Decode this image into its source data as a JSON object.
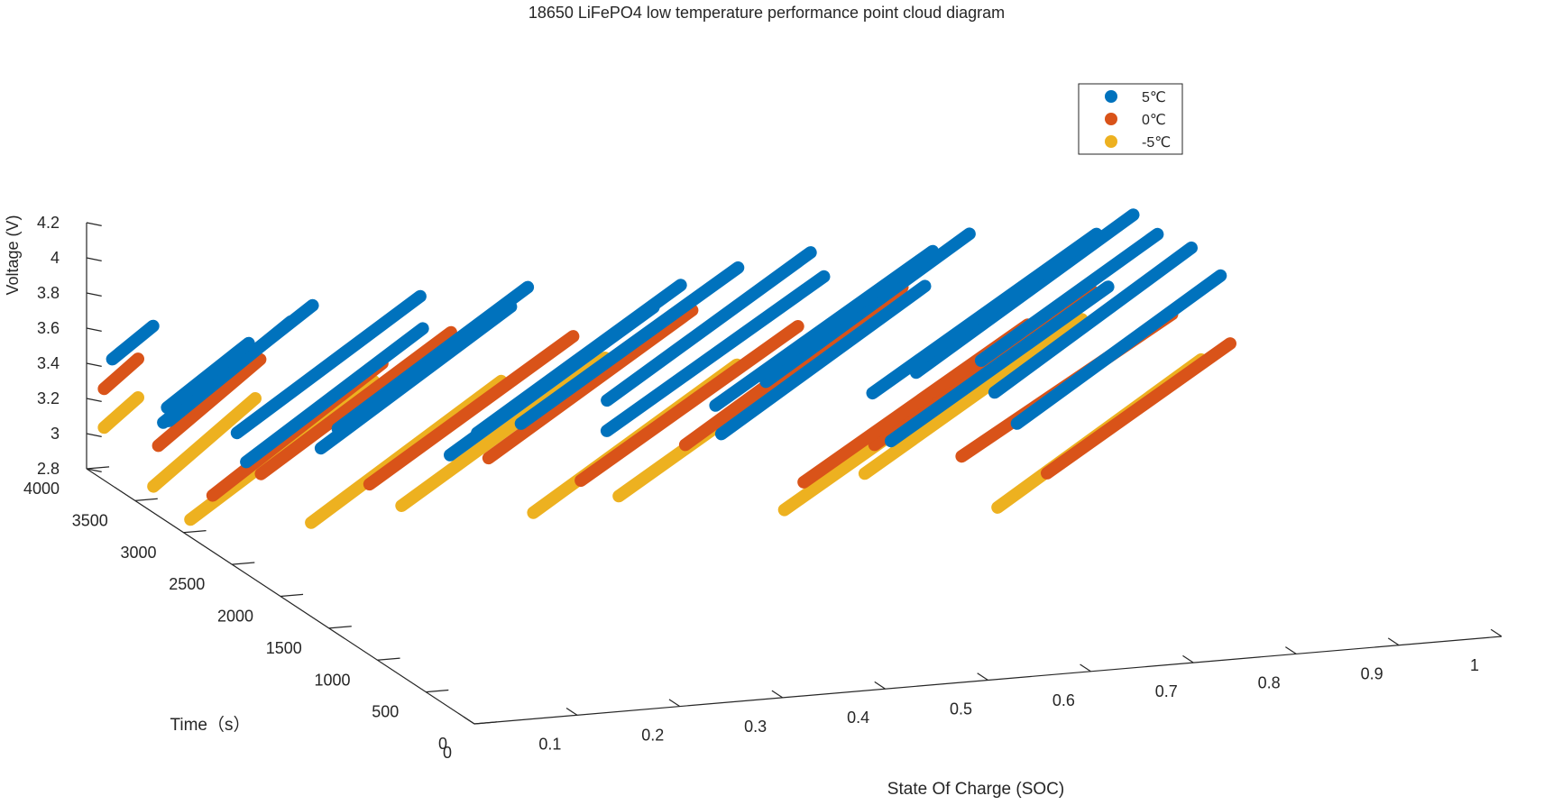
{
  "chart_data": {
    "type": "scatter",
    "projection": "3d",
    "title": "18650 LiFePO4 low temperature performance point cloud diagram",
    "xlabel": "State Of Charge (SOC)",
    "ylabel": "Time（s）",
    "zlabel": "Voltage (V)",
    "xlim": [
      0,
      1
    ],
    "ylim": [
      0,
      4000
    ],
    "zlim": [
      2.8,
      4.2
    ],
    "xticks": [
      0,
      0.1,
      0.2,
      0.3,
      0.4,
      0.5,
      0.6,
      0.7,
      0.8,
      0.9,
      1
    ],
    "yticks": [
      0,
      500,
      1000,
      1500,
      2000,
      2500,
      3000,
      3500,
      4000
    ],
    "zticks": [
      2.8,
      3,
      3.2,
      3.4,
      3.6,
      3.8,
      4,
      4.2
    ],
    "xtick_labels": [
      "0",
      "0.1",
      "0.2",
      "0.3",
      "0.4",
      "0.5",
      "0.6",
      "0.7",
      "0.8",
      "0.9",
      "1"
    ],
    "ytick_labels": [
      "0",
      "500",
      "1000",
      "1500",
      "2000",
      "2500",
      "3000",
      "3500",
      "4000"
    ],
    "ztick_labels": [
      "2.8",
      "3",
      "3.2",
      "3.4",
      "3.6",
      "3.8",
      "4",
      "4.2"
    ],
    "grid": false,
    "legend": "top-right",
    "series": [
      {
        "name": "5℃",
        "color": "#0072BD",
        "strands": [
          {
            "soc_start": 1.0,
            "soc_end": 0.71,
            "t_start": 3200,
            "v_start": 3.85,
            "v_end": 3.55
          },
          {
            "soc_start": 1.0,
            "soc_end": 0.68,
            "t_start": 3800,
            "v_start": 3.82,
            "v_end": 3.5
          },
          {
            "soc_start": 1.0,
            "soc_end": 0.74,
            "t_start": 3550,
            "v_start": 3.8,
            "v_end": 3.55
          },
          {
            "soc_start": 1.0,
            "soc_end": 0.7,
            "t_start": 2900,
            "v_start": 3.8,
            "v_end": 3.5
          },
          {
            "soc_start": 0.95,
            "soc_end": 0.62,
            "t_start": 3650,
            "v_start": 3.79,
            "v_end": 3.48
          },
          {
            "soc_start": 0.9,
            "soc_end": 0.58,
            "t_start": 3000,
            "v_start": 3.75,
            "v_end": 3.45
          },
          {
            "soc_start": 0.85,
            "soc_end": 0.55,
            "t_start": 3900,
            "v_start": 3.75,
            "v_end": 3.45
          },
          {
            "soc_start": 0.8,
            "soc_end": 0.48,
            "t_start": 3750,
            "v_start": 3.73,
            "v_end": 3.43
          },
          {
            "soc_start": 0.75,
            "soc_end": 0.45,
            "t_start": 3300,
            "v_start": 3.72,
            "v_end": 3.42
          },
          {
            "soc_start": 0.7,
            "soc_end": 0.4,
            "t_start": 3950,
            "v_start": 3.7,
            "v_end": 3.4
          },
          {
            "soc_start": 0.68,
            "soc_end": 0.36,
            "t_start": 3600,
            "v_start": 3.7,
            "v_end": 3.4
          },
          {
            "soc_start": 0.62,
            "soc_end": 0.3,
            "t_start": 3850,
            "v_start": 3.69,
            "v_end": 3.38
          },
          {
            "soc_start": 0.55,
            "soc_end": 0.25,
            "t_start": 3700,
            "v_start": 3.68,
            "v_end": 3.38
          },
          {
            "soc_start": 0.5,
            "soc_end": 0.2,
            "t_start": 3450,
            "v_start": 3.67,
            "v_end": 3.37
          },
          {
            "soc_start": 0.42,
            "soc_end": 0.14,
            "t_start": 3900,
            "v_start": 3.66,
            "v_end": 3.36
          },
          {
            "soc_start": 0.38,
            "soc_end": 0.1,
            "t_start": 3650,
            "v_start": 3.66,
            "v_end": 3.36
          },
          {
            "soc_start": 0.32,
            "soc_end": 0.05,
            "t_start": 3950,
            "v_start": 3.64,
            "v_end": 3.35
          },
          {
            "soc_start": 0.28,
            "soc_end": 0.02,
            "t_start": 3500,
            "v_start": 3.64,
            "v_end": 3.35
          },
          {
            "soc_start": 0.22,
            "soc_end": 0.0,
            "t_start": 4000,
            "v_start": 3.62,
            "v_end": 3.35
          },
          {
            "soc_start": 0.18,
            "soc_end": 0.0,
            "t_start": 3800,
            "v_start": 3.62,
            "v_end": 3.38
          },
          {
            "soc_start": 0.12,
            "soc_end": 0.0,
            "t_start": 3600,
            "v_start": 3.6,
            "v_end": 3.45
          },
          {
            "soc_start": 0.06,
            "soc_end": 0.0,
            "t_start": 3950,
            "v_start": 3.6,
            "v_end": 3.52
          }
        ]
      },
      {
        "name": "0℃",
        "color": "#D95319",
        "strands": [
          {
            "soc_start": 1.0,
            "soc_end": 0.69,
            "t_start": 3400,
            "v_start": 3.4,
            "v_end": 3.15
          },
          {
            "soc_start": 1.0,
            "soc_end": 0.73,
            "t_start": 2800,
            "v_start": 3.45,
            "v_end": 3.2
          },
          {
            "soc_start": 0.95,
            "soc_end": 0.63,
            "t_start": 3700,
            "v_start": 3.45,
            "v_end": 3.15
          },
          {
            "soc_start": 0.85,
            "soc_end": 0.52,
            "t_start": 3300,
            "v_start": 3.45,
            "v_end": 3.15
          },
          {
            "soc_start": 0.78,
            "soc_end": 0.46,
            "t_start": 3850,
            "v_start": 3.5,
            "v_end": 3.18
          },
          {
            "soc_start": 0.65,
            "soc_end": 0.33,
            "t_start": 3550,
            "v_start": 3.45,
            "v_end": 3.15
          },
          {
            "soc_start": 0.58,
            "soc_end": 0.28,
            "t_start": 3900,
            "v_start": 3.45,
            "v_end": 3.15
          },
          {
            "soc_start": 0.45,
            "soc_end": 0.15,
            "t_start": 3750,
            "v_start": 3.42,
            "v_end": 3.12
          },
          {
            "soc_start": 0.35,
            "soc_end": 0.07,
            "t_start": 3950,
            "v_start": 3.42,
            "v_end": 3.12
          },
          {
            "soc_start": 0.25,
            "soc_end": 0.0,
            "t_start": 3600,
            "v_start": 3.42,
            "v_end": 3.12
          },
          {
            "soc_start": 0.15,
            "soc_end": 0.0,
            "t_start": 3800,
            "v_start": 3.42,
            "v_end": 3.2
          },
          {
            "soc_start": 0.05,
            "soc_end": 0.0,
            "t_start": 4000,
            "v_start": 3.4,
            "v_end": 3.32
          }
        ]
      },
      {
        "name": "-5℃",
        "color": "#EDB120",
        "strands": [
          {
            "soc_start": 1.0,
            "soc_end": 0.7,
            "t_start": 3100,
            "v_start": 3.25,
            "v_end": 2.95
          },
          {
            "soc_start": 0.95,
            "soc_end": 0.63,
            "t_start": 3800,
            "v_start": 3.25,
            "v_end": 2.95
          },
          {
            "soc_start": 0.85,
            "soc_end": 0.52,
            "t_start": 3500,
            "v_start": 3.22,
            "v_end": 2.92
          },
          {
            "soc_start": 0.72,
            "soc_end": 0.4,
            "t_start": 3900,
            "v_start": 3.2,
            "v_end": 2.9
          },
          {
            "soc_start": 0.6,
            "soc_end": 0.3,
            "t_start": 3650,
            "v_start": 3.22,
            "v_end": 2.92
          },
          {
            "soc_start": 0.5,
            "soc_end": 0.2,
            "t_start": 3950,
            "v_start": 3.2,
            "v_end": 2.9
          },
          {
            "soc_start": 0.38,
            "soc_end": 0.1,
            "t_start": 3750,
            "v_start": 3.2,
            "v_end": 2.9
          },
          {
            "soc_start": 0.27,
            "soc_end": 0.0,
            "t_start": 3900,
            "v_start": 3.2,
            "v_end": 2.9
          },
          {
            "soc_start": 0.15,
            "soc_end": 0.0,
            "t_start": 3850,
            "v_start": 3.18,
            "v_end": 2.95
          },
          {
            "soc_start": 0.05,
            "soc_end": 0.0,
            "t_start": 4000,
            "v_start": 3.18,
            "v_end": 3.1
          }
        ]
      }
    ]
  }
}
